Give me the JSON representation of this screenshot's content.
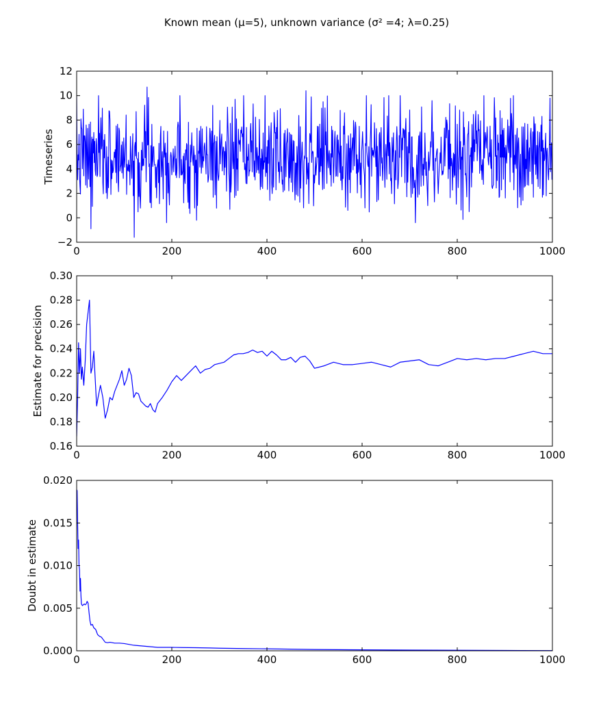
{
  "figure": {
    "title": "Known mean (μ=5), unknown variance (σ² =4; λ=0.25)",
    "line_color": "#0000ff"
  },
  "chart_data": [
    {
      "type": "line",
      "ylabel": "Timeseries",
      "xlim": [
        0,
        1000
      ],
      "ylim": [
        -2,
        12
      ],
      "xticks": [
        0,
        200,
        400,
        600,
        800,
        1000
      ],
      "yticks": [
        -2,
        0,
        2,
        4,
        6,
        8,
        10,
        12
      ],
      "grid": false,
      "series": [
        {
          "generated": "gaussian-noise",
          "n": 1000,
          "mean": 5,
          "std": 2,
          "seed": 7,
          "x": [],
          "y": [],
          "anchors": [
            [
              30,
              -0.9
            ],
            [
              121,
              -1.6
            ],
            [
              148,
              10.7
            ],
            [
              482,
              10.4
            ],
            [
              995,
              9.8
            ]
          ]
        }
      ]
    },
    {
      "type": "line",
      "ylabel": "Estimate for precision",
      "xlim": [
        0,
        1000
      ],
      "ylim": [
        0.16,
        0.3
      ],
      "xticks": [
        0,
        200,
        400,
        600,
        800,
        1000
      ],
      "yticks": [
        0.16,
        0.18,
        0.2,
        0.22,
        0.24,
        0.26,
        0.28,
        0.3
      ],
      "grid": false,
      "series": [
        {
          "x": [
            0,
            2,
            4,
            6,
            8,
            10,
            12,
            15,
            18,
            21,
            24,
            27,
            30,
            33,
            36,
            39,
            42,
            45,
            50,
            55,
            60,
            65,
            70,
            75,
            80,
            85,
            90,
            95,
            100,
            105,
            110,
            115,
            120,
            125,
            130,
            135,
            140,
            145,
            150,
            155,
            160,
            165,
            170,
            180,
            190,
            200,
            210,
            220,
            230,
            240,
            250,
            260,
            270,
            280,
            290,
            300,
            310,
            320,
            330,
            340,
            350,
            360,
            370,
            380,
            390,
            400,
            410,
            420,
            430,
            440,
            450,
            460,
            470,
            480,
            490,
            500,
            520,
            540,
            560,
            580,
            600,
            620,
            640,
            660,
            680,
            700,
            720,
            740,
            760,
            780,
            800,
            820,
            840,
            860,
            880,
            900,
            920,
            940,
            960,
            980,
            1000
          ],
          "y": [
            0.168,
            0.2,
            0.245,
            0.22,
            0.24,
            0.215,
            0.225,
            0.21,
            0.23,
            0.26,
            0.27,
            0.28,
            0.22,
            0.225,
            0.238,
            0.215,
            0.193,
            0.2,
            0.21,
            0.2,
            0.183,
            0.19,
            0.2,
            0.198,
            0.205,
            0.21,
            0.215,
            0.222,
            0.21,
            0.215,
            0.224,
            0.218,
            0.2,
            0.204,
            0.203,
            0.197,
            0.195,
            0.193,
            0.192,
            0.195,
            0.19,
            0.188,
            0.195,
            0.2,
            0.206,
            0.213,
            0.218,
            0.214,
            0.218,
            0.222,
            0.226,
            0.22,
            0.223,
            0.224,
            0.227,
            0.228,
            0.229,
            0.232,
            0.235,
            0.236,
            0.236,
            0.237,
            0.239,
            0.237,
            0.238,
            0.234,
            0.238,
            0.235,
            0.231,
            0.231,
            0.233,
            0.229,
            0.233,
            0.234,
            0.23,
            0.224,
            0.226,
            0.229,
            0.227,
            0.227,
            0.228,
            0.229,
            0.227,
            0.225,
            0.229,
            0.23,
            0.231,
            0.227,
            0.226,
            0.229,
            0.232,
            0.231,
            0.232,
            0.231,
            0.232,
            0.232,
            0.234,
            0.236,
            0.238,
            0.236,
            0.236
          ]
        }
      ]
    },
    {
      "type": "line",
      "ylabel": "Doubt in estimate",
      "xlim": [
        0,
        1000
      ],
      "ylim": [
        0,
        0.02
      ],
      "xticks": [
        0,
        200,
        400,
        600,
        800,
        1000
      ],
      "yticks": [
        0.0,
        0.005,
        0.01,
        0.015,
        0.02
      ],
      "ytick_format": 3,
      "grid": false,
      "series": [
        {
          "x": [
            0,
            1,
            2,
            3,
            4,
            5,
            6,
            7,
            8,
            9,
            10,
            12,
            14,
            16,
            18,
            20,
            22,
            24,
            26,
            28,
            30,
            33,
            36,
            40,
            44,
            48,
            52,
            56,
            60,
            65,
            70,
            80,
            90,
            100,
            110,
            120,
            130,
            140,
            150,
            160,
            170,
            180,
            200,
            220,
            250,
            280,
            300,
            350,
            400,
            450,
            500,
            600,
            700,
            800,
            900,
            1000
          ],
          "y": [
            0.0189,
            0.0188,
            0.015,
            0.012,
            0.013,
            0.01,
            0.0095,
            0.007,
            0.0085,
            0.0065,
            0.0055,
            0.0053,
            0.0054,
            0.0055,
            0.0054,
            0.0055,
            0.0058,
            0.0056,
            0.0045,
            0.0035,
            0.003,
            0.0031,
            0.0027,
            0.0025,
            0.0019,
            0.0017,
            0.0016,
            0.0013,
            0.001,
            0.00095,
            0.001,
            0.0009,
            0.0009,
            0.00085,
            0.00075,
            0.00065,
            0.0006,
            0.00055,
            0.0005,
            0.00045,
            0.0004,
            0.0004,
            0.0004,
            0.00038,
            0.00036,
            0.00033,
            0.0003,
            0.00026,
            0.00023,
            0.00019,
            0.00015,
            0.00011,
            8e-05,
            6e-05,
            4e-05,
            2e-05
          ]
        }
      ]
    }
  ]
}
